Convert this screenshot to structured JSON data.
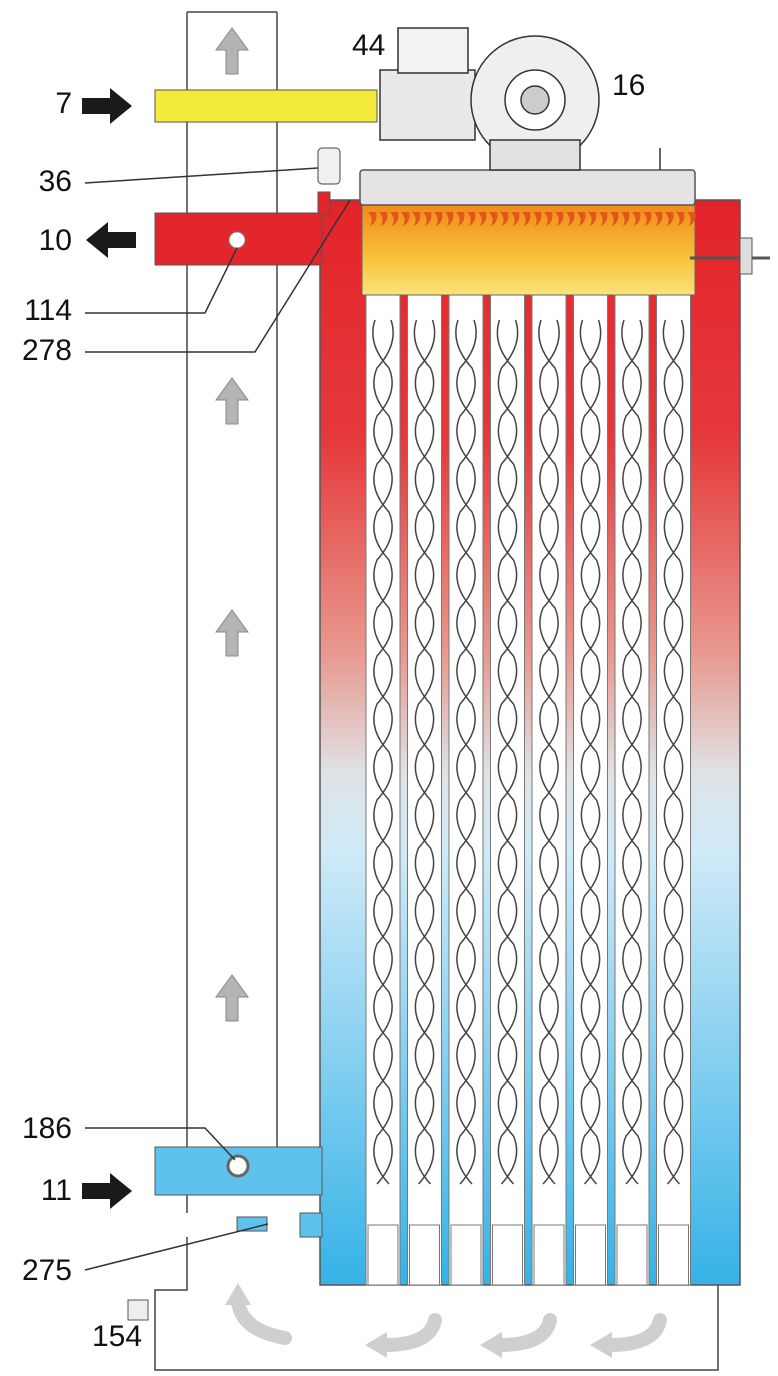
{
  "labels": [
    "7",
    "44",
    "16",
    "36",
    "10",
    "114",
    "278",
    "186",
    "11",
    "275",
    "154"
  ]
}
